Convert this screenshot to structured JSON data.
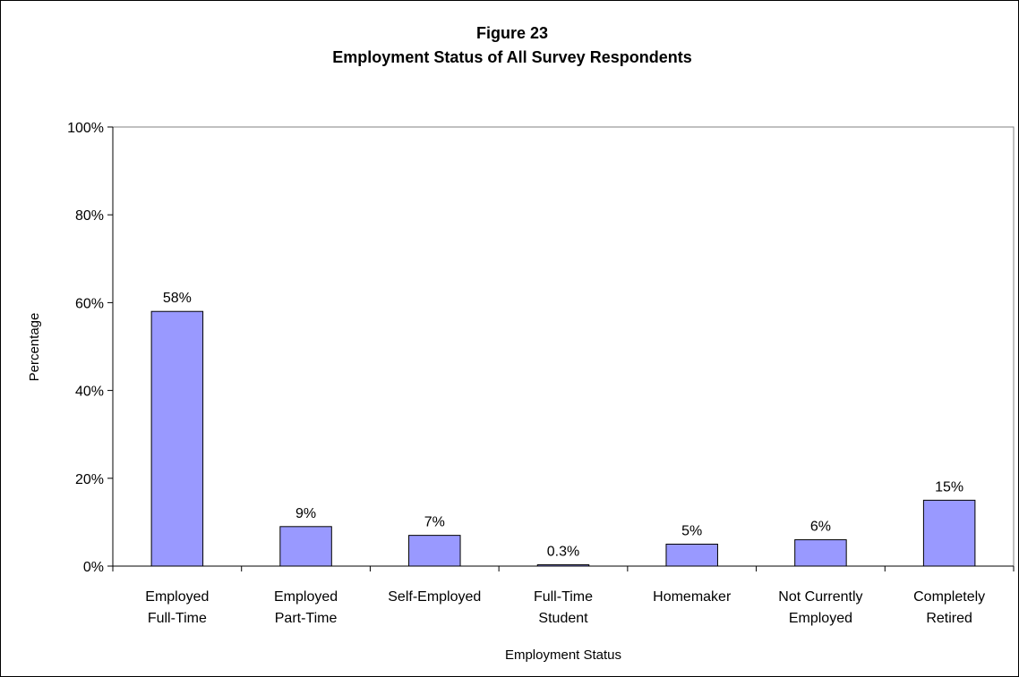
{
  "chart_data": {
    "type": "bar",
    "title": "Figure 23",
    "subtitle": "Employment Status of All Survey Respondents",
    "xlabel": "Employment Status",
    "ylabel": "Percentage",
    "ylim": [
      0,
      100
    ],
    "yticks": [
      0,
      20,
      40,
      60,
      80,
      100
    ],
    "ytick_labels": [
      "0%",
      "20%",
      "40%",
      "60%",
      "80%",
      "100%"
    ],
    "categories": [
      [
        "Employed",
        "Full-Time"
      ],
      [
        "Employed",
        "Part-Time"
      ],
      [
        "Self-Employed"
      ],
      [
        "Full-Time",
        "Student"
      ],
      [
        "Homemaker"
      ],
      [
        "Not Currently",
        "Employed"
      ],
      [
        "Completely",
        "Retired"
      ]
    ],
    "values": [
      58,
      9,
      7,
      0.3,
      5,
      6,
      15
    ],
    "data_labels": [
      "58%",
      "9%",
      "7%",
      "0.3%",
      "5%",
      "6%",
      "15%"
    ],
    "bar_color": "#9999ff",
    "grid": false,
    "legend": "none"
  }
}
